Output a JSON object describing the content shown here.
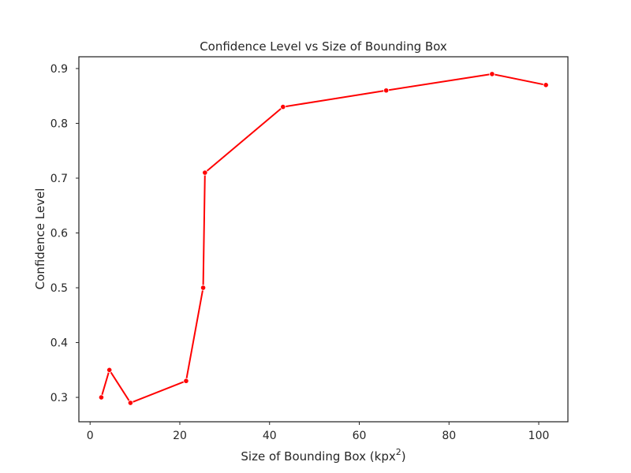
{
  "chart_data": {
    "type": "line",
    "title": "Confidence Level vs Size of Bounding Box",
    "xlabel_main": "Size of Bounding Box (kpx",
    "xlabel_sup": "2",
    "xlabel_end": ")",
    "ylabel": "Confidence Level",
    "xlim": [
      -2.5,
      106.5
    ],
    "ylim": [
      0.2555,
      0.9215
    ],
    "xticks": [
      0,
      20,
      40,
      60,
      80,
      100
    ],
    "xtick_labels": [
      "0",
      "20",
      "40",
      "60",
      "80",
      "100"
    ],
    "yticks": [
      0.3,
      0.4,
      0.5,
      0.6,
      0.7,
      0.8,
      0.9
    ],
    "ytick_labels": [
      "0.3",
      "0.4",
      "0.5",
      "0.6",
      "0.7",
      "0.8",
      "0.9"
    ],
    "grid": false,
    "series": [
      {
        "color": "#ff0000",
        "points": [
          {
            "x": 2.5,
            "y": 0.3
          },
          {
            "x": 4.3,
            "y": 0.35
          },
          {
            "x": 9.0,
            "y": 0.29
          },
          {
            "x": 21.4,
            "y": 0.33
          },
          {
            "x": 25.2,
            "y": 0.5
          },
          {
            "x": 25.6,
            "y": 0.71
          },
          {
            "x": 43.0,
            "y": 0.83
          },
          {
            "x": 66.0,
            "y": 0.86
          },
          {
            "x": 89.6,
            "y": 0.89
          },
          {
            "x": 101.6,
            "y": 0.87
          }
        ]
      }
    ]
  }
}
